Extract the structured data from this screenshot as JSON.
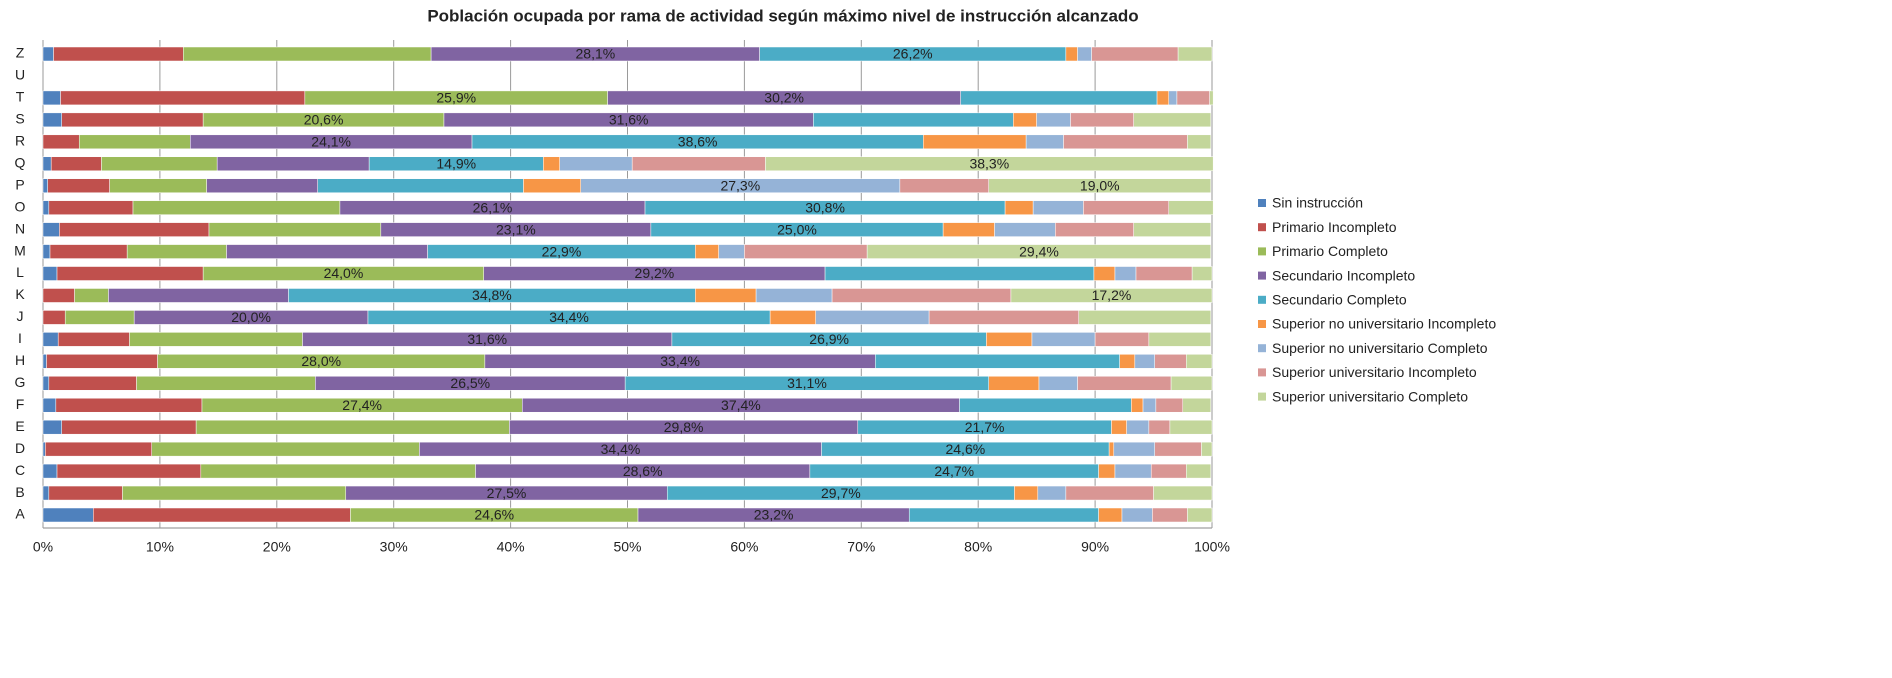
{
  "chart_data": {
    "type": "stacked_barh",
    "title": "Población ocupada por rama de actividad según máximo nivel de instrucción alcanzado",
    "categories": [
      "A",
      "B",
      "C",
      "D",
      "E",
      "F",
      "G",
      "H",
      "I",
      "J",
      "K",
      "L",
      "M",
      "N",
      "O",
      "P",
      "Q",
      "R",
      "S",
      "T",
      "U",
      "Z"
    ],
    "xlim": [
      0,
      100
    ],
    "xticks": [
      {
        "value": 0,
        "label": "0%"
      },
      {
        "value": 10,
        "label": "10%"
      },
      {
        "value": 20,
        "label": "20%"
      },
      {
        "value": 30,
        "label": "30%"
      },
      {
        "value": 40,
        "label": "40%"
      },
      {
        "value": 50,
        "label": "50%"
      },
      {
        "value": 60,
        "label": "60%"
      },
      {
        "value": 70,
        "label": "70%"
      },
      {
        "value": 80,
        "label": "80%"
      },
      {
        "value": 90,
        "label": "90%"
      },
      {
        "value": 100,
        "label": "100%"
      }
    ],
    "grid": true,
    "legend": "right",
    "series": [
      {
        "name": "Sin instrucción",
        "color": "#4f81bd",
        "values": [
          4.3,
          0.5,
          1.2,
          0.2,
          1.6,
          1.1,
          0.5,
          0.3,
          1.3,
          0,
          0,
          1.2,
          0.6,
          1.4,
          0.5,
          0.4,
          0.7,
          0,
          1.6,
          1.5,
          null,
          0.9
        ]
      },
      {
        "name": "Primario Incompleto",
        "color": "#c0504d",
        "values": [
          22.0,
          6.3,
          12.3,
          9.1,
          11.5,
          12.5,
          7.5,
          9.5,
          6.1,
          1.9,
          2.7,
          12.5,
          6.6,
          12.8,
          7.2,
          5.3,
          4.3,
          3.1,
          12.1,
          20.9,
          null,
          11.1
        ]
      },
      {
        "name": "Primario Completo",
        "color": "#9bbb59",
        "values": [
          24.6,
          19.1,
          23.5,
          22.9,
          26.8,
          27.4,
          15.3,
          28.0,
          14.8,
          5.9,
          2.9,
          24.0,
          8.5,
          14.7,
          17.7,
          8.3,
          9.9,
          9.5,
          20.6,
          25.9,
          null,
          21.2
        ],
        "value_labels": [
          "24,6%",
          null,
          null,
          null,
          null,
          "27,4%",
          null,
          "28,0%",
          null,
          null,
          null,
          "24,0%",
          null,
          null,
          null,
          null,
          null,
          null,
          "20,6%",
          "25,9%",
          null,
          null
        ]
      },
      {
        "name": "Secundario Incompleto",
        "color": "#8064a2",
        "values": [
          23.2,
          27.5,
          28.6,
          34.4,
          29.8,
          37.4,
          26.5,
          33.4,
          31.6,
          20.0,
          15.4,
          29.2,
          17.2,
          23.1,
          26.1,
          9.5,
          13.0,
          24.1,
          31.6,
          30.2,
          null,
          28.1
        ],
        "value_labels": [
          "23,2%",
          "27,5%",
          "28,6%",
          "34,4%",
          "29,8%",
          "37,4%",
          "26,5%",
          "33,4%",
          "31,6%",
          "20,0%",
          null,
          "29,2%",
          null,
          "23,1%",
          "26,1%",
          null,
          null,
          "24,1%",
          "31,6%",
          "30,2%",
          null,
          "28,1%"
        ]
      },
      {
        "name": "Secundario Completo",
        "color": "#4bacc6",
        "values": [
          16.2,
          29.7,
          24.7,
          24.6,
          21.7,
          14.7,
          31.1,
          20.9,
          26.9,
          34.4,
          34.8,
          23.0,
          22.9,
          25.0,
          30.8,
          17.6,
          14.9,
          38.6,
          17.1,
          16.8,
          null,
          26.2
        ],
        "value_labels": [
          null,
          "29,7%",
          "24,7%",
          "24,6%",
          "21,7%",
          null,
          "31,1%",
          null,
          "26,9%",
          "34,4%",
          "34,8%",
          null,
          "22,9%",
          "25,0%",
          "30,8%",
          null,
          "14,9%",
          "38,6%",
          null,
          null,
          null,
          "26,2%"
        ]
      },
      {
        "name": "Superior no universitario Incompleto",
        "color": "#f79646",
        "values": [
          2.0,
          2.0,
          1.4,
          0.4,
          1.3,
          1.0,
          4.3,
          1.3,
          3.9,
          3.9,
          5.2,
          1.8,
          2.0,
          4.4,
          2.4,
          4.9,
          1.4,
          8.8,
          2.0,
          1.0,
          null,
          1.0
        ]
      },
      {
        "name": "Superior no universitario Completo",
        "color": "#95b3d7",
        "values": [
          2.6,
          2.4,
          3.1,
          3.5,
          1.9,
          1.1,
          3.3,
          1.7,
          5.4,
          9.7,
          6.5,
          1.8,
          2.2,
          5.2,
          4.3,
          27.3,
          6.2,
          3.2,
          2.9,
          0.7,
          null,
          1.2
        ],
        "value_labels": [
          null,
          null,
          null,
          null,
          null,
          null,
          null,
          null,
          null,
          null,
          null,
          null,
          null,
          null,
          null,
          "27,3%",
          null,
          null,
          null,
          null,
          null,
          null
        ]
      },
      {
        "name": "Superior universitario Incompleto",
        "color": "#d99694",
        "values": [
          3.0,
          7.5,
          3.0,
          4.0,
          1.8,
          2.3,
          8.0,
          2.7,
          4.6,
          12.8,
          15.3,
          4.8,
          10.5,
          6.7,
          7.3,
          7.6,
          11.4,
          10.6,
          5.4,
          2.8,
          null,
          7.4
        ]
      },
      {
        "name": "Superior universitario Completo",
        "color": "#c3d69b",
        "values": [
          2.1,
          5.0,
          2.1,
          0.9,
          3.6,
          2.4,
          3.5,
          2.2,
          5.3,
          11.3,
          17.2,
          1.7,
          29.4,
          6.6,
          3.8,
          19.0,
          38.3,
          2.0,
          6.6,
          0.3,
          null,
          2.9
        ],
        "value_labels": [
          null,
          null,
          null,
          null,
          null,
          null,
          null,
          null,
          null,
          null,
          "17,2%",
          null,
          "29,4%",
          null,
          null,
          "19,0%",
          "38,3%",
          null,
          null,
          null,
          null,
          null
        ]
      }
    ]
  }
}
